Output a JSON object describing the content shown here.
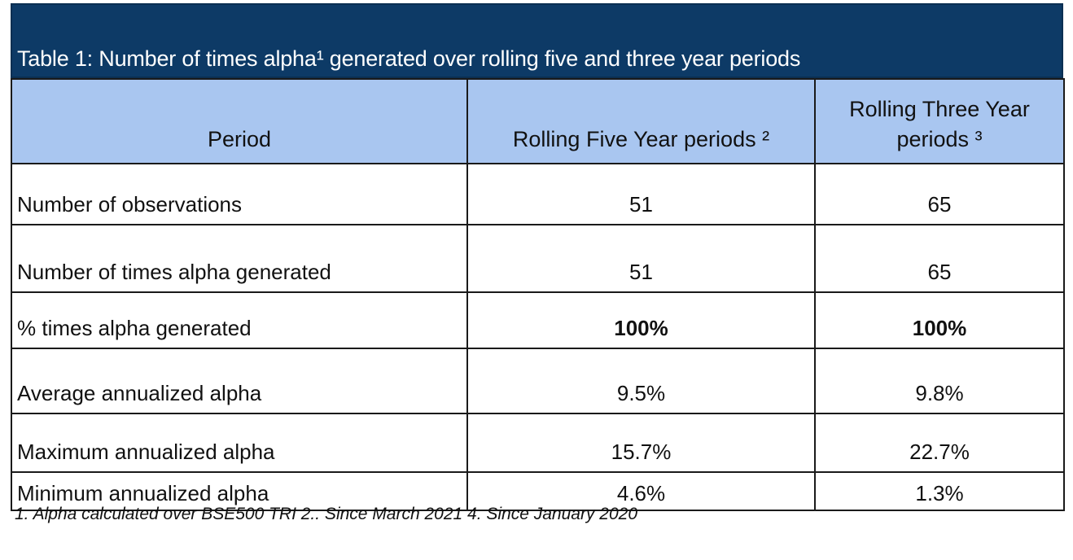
{
  "title": "Table 1: Number of times alpha¹ generated over rolling five and three year periods",
  "headers": {
    "period": "Period",
    "five_year": "Rolling Five Year periods ²",
    "three_year_line1": "Rolling Three Year",
    "three_year_line2": "periods ³"
  },
  "rows": [
    {
      "label": "Number of observations",
      "five_year": "51",
      "three_year": "65"
    },
    {
      "label": "Number of times alpha generated",
      "five_year": "51",
      "three_year": "65"
    },
    {
      "label": "% times alpha generated",
      "five_year": "100%",
      "three_year": "100%"
    },
    {
      "label": "Average annualized alpha",
      "five_year": "9.5%",
      "three_year": "9.8%"
    },
    {
      "label": "Maximum annualized alpha",
      "five_year": "15.7%",
      "three_year": "22.7%"
    },
    {
      "label": "Minimum annualized alpha",
      "five_year": "4.6%",
      "three_year": "1.3%"
    }
  ],
  "footnote": "1. Alpha calculated over BSE500 TRI 2.. Since March 2021 4. Since January 2020",
  "colors": {
    "title_background": "#0d3a66",
    "header_background": "#a9c6f0"
  }
}
